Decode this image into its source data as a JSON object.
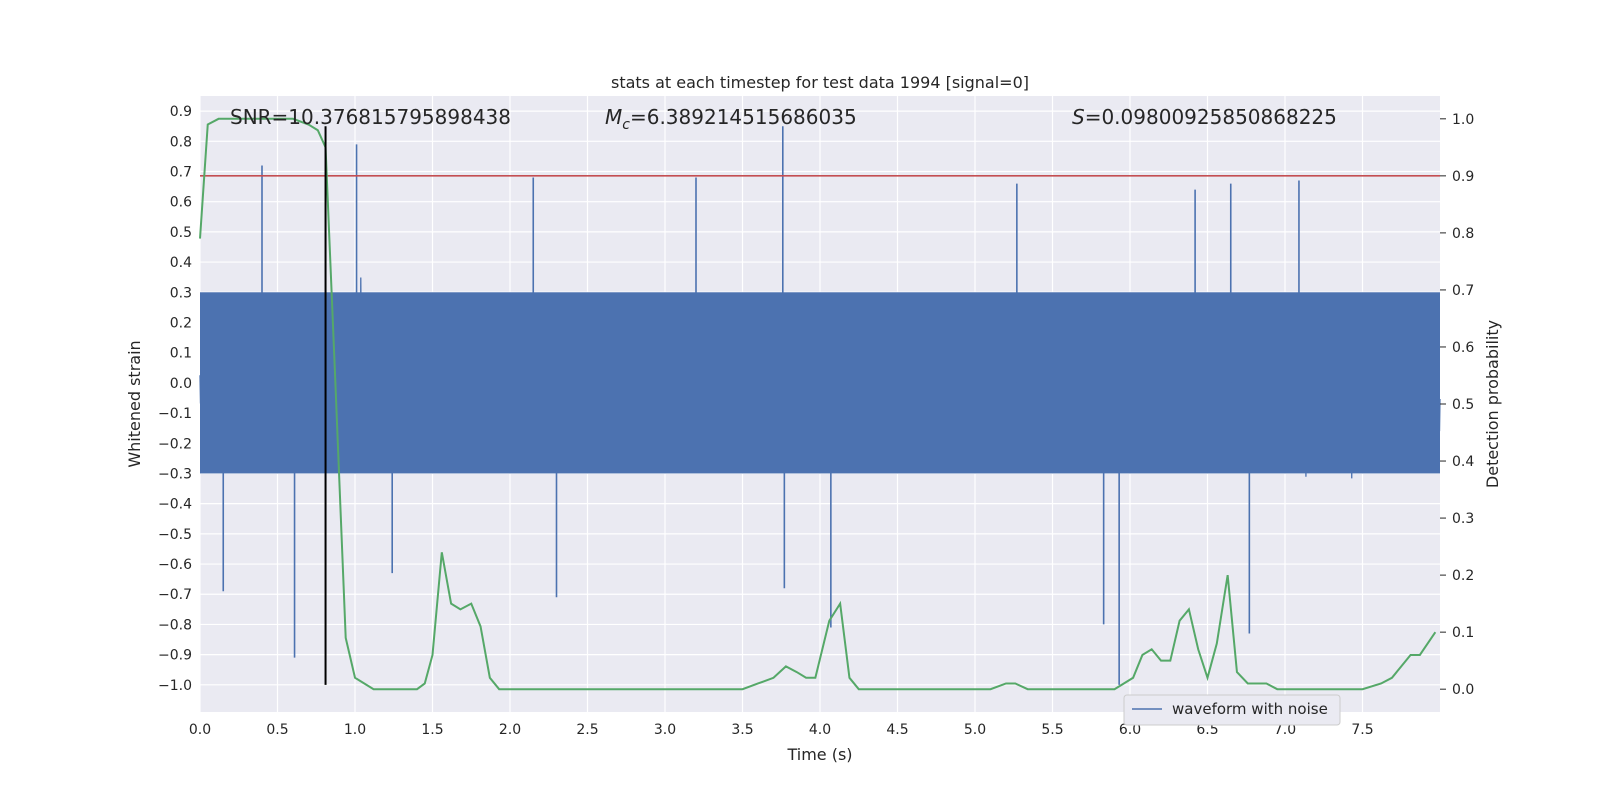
{
  "chart_data": {
    "type": "line",
    "title": "stats at each timestep for test data 1994 [signal=0]",
    "xlabel": "Time (s)",
    "ylabel": "Whitened strain",
    "y2label": "Detection probability",
    "xlim": [
      0.0,
      8.0
    ],
    "ylim": [
      -1.09,
      0.95
    ],
    "y2lim": [
      -0.04,
      1.04
    ],
    "x_ticks": [
      "0.0",
      "0.5",
      "1.0",
      "1.5",
      "2.0",
      "2.5",
      "3.0",
      "3.5",
      "4.0",
      "4.5",
      "5.0",
      "5.5",
      "6.0",
      "6.5",
      "7.0",
      "7.5"
    ],
    "x_tick_values": [
      0,
      0.5,
      1,
      1.5,
      2,
      2.5,
      3,
      3.5,
      4,
      4.5,
      5,
      5.5,
      6,
      6.5,
      7,
      7.5
    ],
    "y_ticks": [
      "0.9",
      "0.8",
      "0.7",
      "0.6",
      "0.5",
      "0.4",
      "0.3",
      "0.2",
      "0.1",
      "0.0",
      "−0.1",
      "−0.2",
      "−0.3",
      "−0.4",
      "−0.5",
      "−0.6",
      "−0.7",
      "−0.8",
      "−0.9",
      "−1.0"
    ],
    "y_tick_values": [
      0.9,
      0.8,
      0.7,
      0.6,
      0.5,
      0.4,
      0.3,
      0.2,
      0.1,
      0.0,
      -0.1,
      -0.2,
      -0.3,
      -0.4,
      -0.5,
      -0.6,
      -0.7,
      -0.8,
      -0.9,
      -1.0
    ],
    "y2_ticks": [
      "1.0",
      "0.9",
      "0.8",
      "0.7",
      "0.6",
      "0.5",
      "0.4",
      "0.3",
      "0.2",
      "0.1",
      "0.0"
    ],
    "y2_tick_values": [
      1.0,
      0.9,
      0.8,
      0.7,
      0.6,
      0.5,
      0.4,
      0.3,
      0.2,
      0.1,
      0.0
    ],
    "annotations": {
      "snr": "SNR=10.376815795898438",
      "mc_symbol": "M",
      "mc_sub": "c",
      "mc_value": "=6.389214515686035",
      "s_symbol": "S",
      "s_value": "=0.09800925850868225"
    },
    "threshold": {
      "axis": "right",
      "value": 0.9,
      "color": "#c44e52"
    },
    "marker_time": 0.81,
    "marker_ymin": -1.0,
    "marker_ymax": 0.85,
    "series": [
      {
        "name": "waveform with noise",
        "axis": "left",
        "color": "#4c72b0",
        "kind": "noise",
        "base_amplitude": 0.26,
        "peaks": [
          {
            "x": 0.4,
            "y": 0.72
          },
          {
            "x": 0.61,
            "y": -0.91
          },
          {
            "x": 0.15,
            "y": -0.69
          },
          {
            "x": 1.01,
            "y": 0.79
          },
          {
            "x": 1.24,
            "y": -0.63
          },
          {
            "x": 2.15,
            "y": 0.68
          },
          {
            "x": 2.3,
            "y": -0.71
          },
          {
            "x": 3.2,
            "y": 0.68
          },
          {
            "x": 3.76,
            "y": 0.85
          },
          {
            "x": 3.77,
            "y": -0.68
          },
          {
            "x": 4.07,
            "y": -0.81
          },
          {
            "x": 5.27,
            "y": 0.66
          },
          {
            "x": 5.83,
            "y": -0.8
          },
          {
            "x": 5.93,
            "y": -1.0
          },
          {
            "x": 6.65,
            "y": 0.66
          },
          {
            "x": 6.77,
            "y": -0.83
          },
          {
            "x": 7.09,
            "y": 0.67
          },
          {
            "x": 6.42,
            "y": 0.64
          }
        ]
      },
      {
        "name": "",
        "axis": "right",
        "color": "#55a868",
        "kind": "line",
        "x": [
          0.0,
          0.05,
          0.12,
          0.2,
          0.3,
          0.4,
          0.5,
          0.6,
          0.7,
          0.76,
          0.81,
          0.87,
          0.94,
          1.0,
          1.06,
          1.12,
          1.2,
          1.3,
          1.4,
          1.45,
          1.5,
          1.56,
          1.62,
          1.68,
          1.75,
          1.81,
          1.87,
          1.93,
          2.0,
          2.2,
          2.5,
          3.0,
          3.3,
          3.5,
          3.6,
          3.7,
          3.78,
          3.85,
          3.91,
          3.97,
          4.06,
          4.13,
          4.19,
          4.25,
          4.5,
          5.0,
          5.1,
          5.2,
          5.26,
          5.34,
          5.4,
          5.46,
          5.6,
          5.9,
          5.96,
          6.02,
          6.08,
          6.14,
          6.2,
          6.26,
          6.32,
          6.38,
          6.44,
          6.5,
          6.56,
          6.63,
          6.69,
          6.76,
          6.88,
          6.95,
          7.0,
          7.3,
          7.5,
          7.62,
          7.69,
          7.75,
          7.81,
          7.87,
          7.97
        ],
        "y": [
          0.79,
          0.99,
          1.0,
          1.0,
          1.0,
          1.0,
          1.0,
          1.0,
          0.99,
          0.98,
          0.95,
          0.56,
          0.09,
          0.02,
          0.01,
          0.0,
          0.0,
          0.0,
          0.0,
          0.01,
          0.06,
          0.24,
          0.15,
          0.14,
          0.15,
          0.11,
          0.02,
          0.0,
          0.0,
          0.0,
          0.0,
          0.0,
          0.0,
          0.0,
          0.01,
          0.02,
          0.04,
          0.03,
          0.02,
          0.02,
          0.12,
          0.15,
          0.02,
          0.0,
          0.0,
          0.0,
          0.0,
          0.01,
          0.01,
          0.0,
          0.0,
          0.0,
          0.0,
          0.0,
          0.01,
          0.02,
          0.06,
          0.07,
          0.05,
          0.05,
          0.12,
          0.14,
          0.07,
          0.02,
          0.08,
          0.2,
          0.03,
          0.01,
          0.01,
          0.0,
          0.0,
          0.0,
          0.0,
          0.01,
          0.02,
          0.04,
          0.06,
          0.06,
          0.1
        ]
      }
    ],
    "legend": {
      "label": "waveform with noise",
      "position": "lower-right"
    },
    "grid": true,
    "colors": {
      "plot_bg": "#eaeaf2",
      "grid": "#ffffff",
      "marker": "#000000"
    }
  }
}
